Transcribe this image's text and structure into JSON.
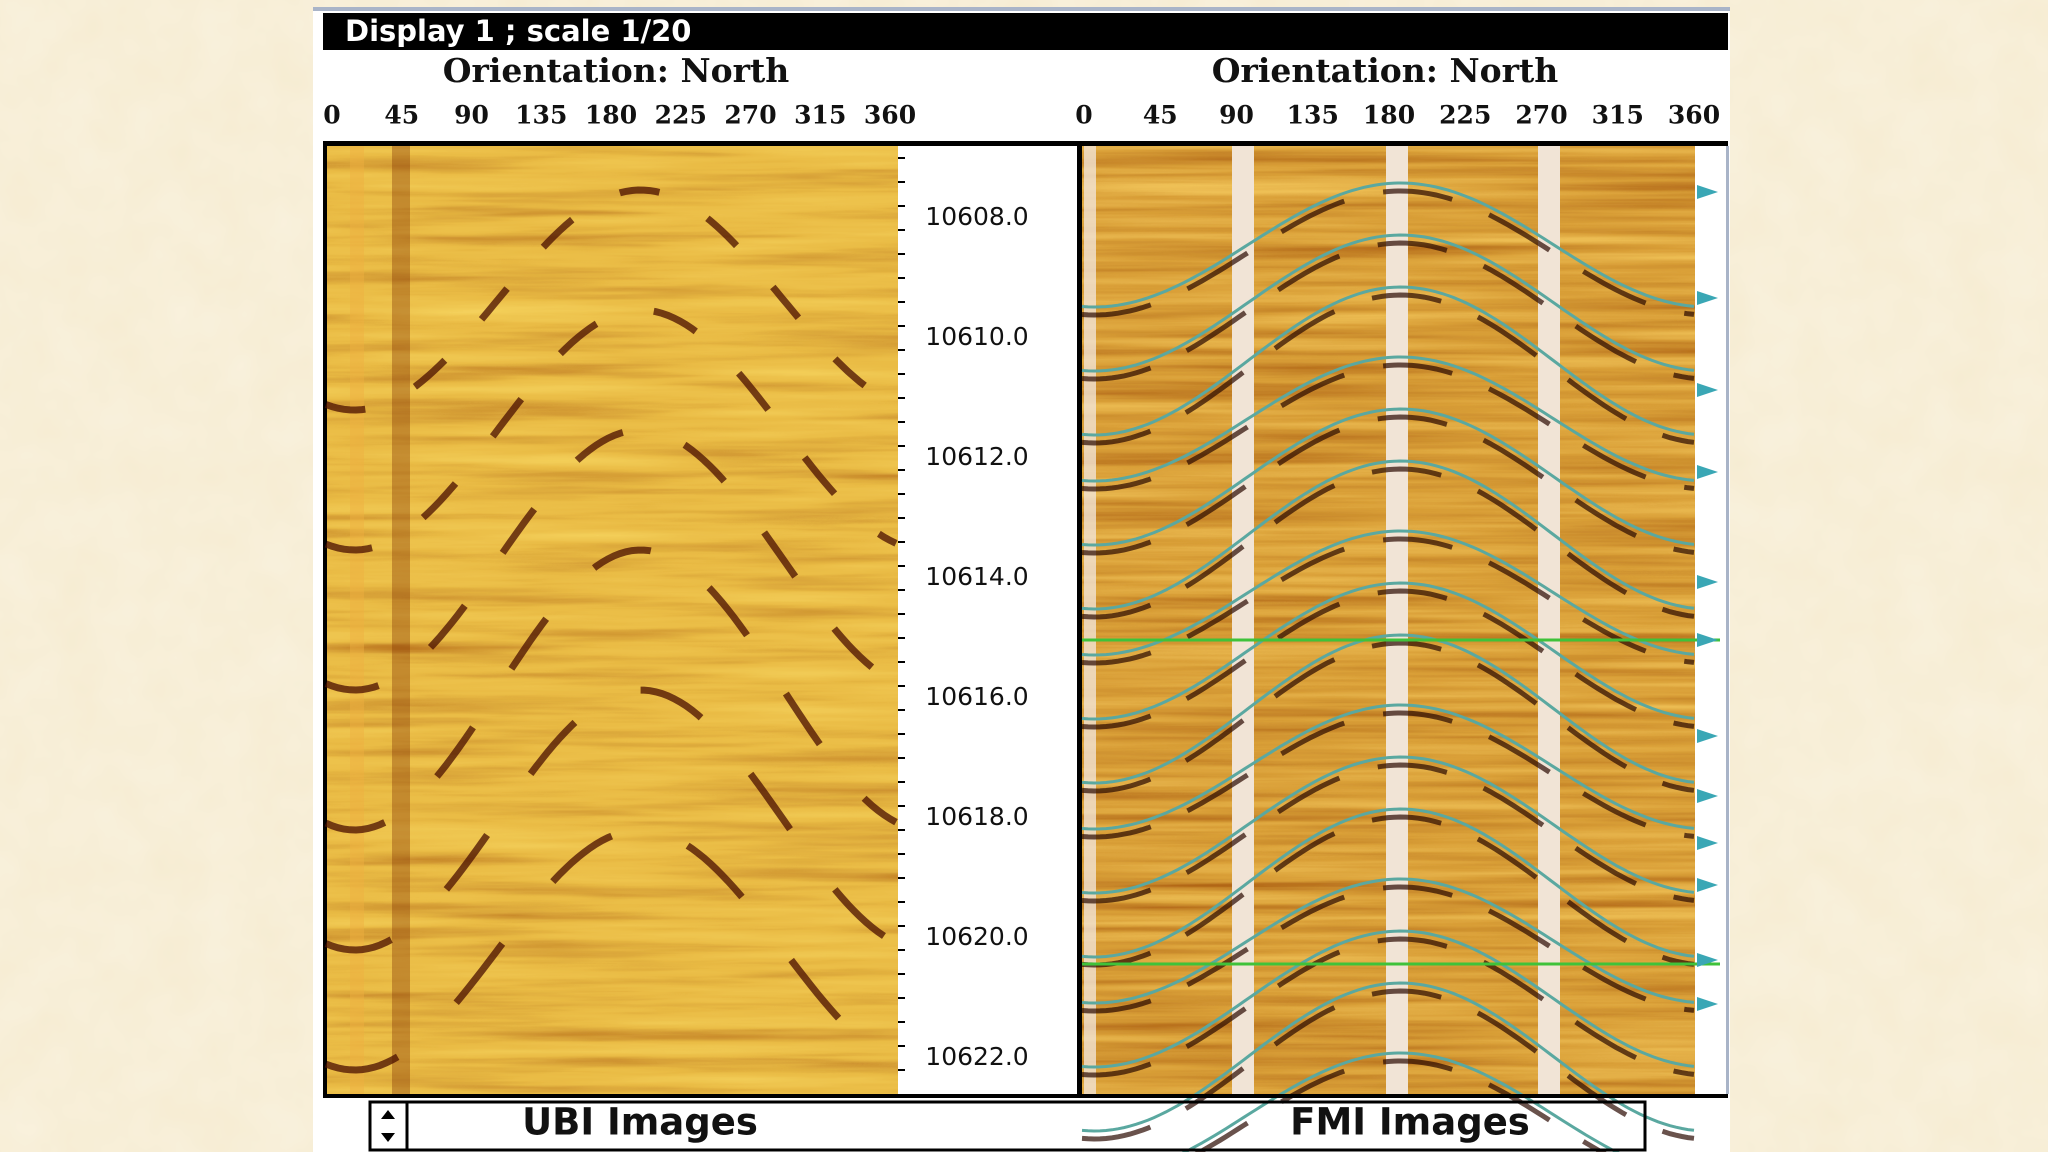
{
  "title": "Display 1 ; scale 1/20",
  "panels": [
    {
      "orientation": "Orientation: North",
      "azimuth_ticks": [
        "0",
        "45",
        "90",
        "135",
        "180",
        "225",
        "270",
        "315",
        "360"
      ],
      "label": "UBI Images"
    },
    {
      "orientation": "Orientation: North",
      "azimuth_ticks": [
        "0",
        "45",
        "90",
        "135",
        "180",
        "225",
        "270",
        "315",
        "360"
      ],
      "label": "FMI Images"
    }
  ],
  "depth_track": {
    "labels": [
      "10608.0",
      "10610.0",
      "10612.0",
      "10614.0",
      "10616.0",
      "10618.0",
      "10620.0",
      "10622.0"
    ]
  }
}
